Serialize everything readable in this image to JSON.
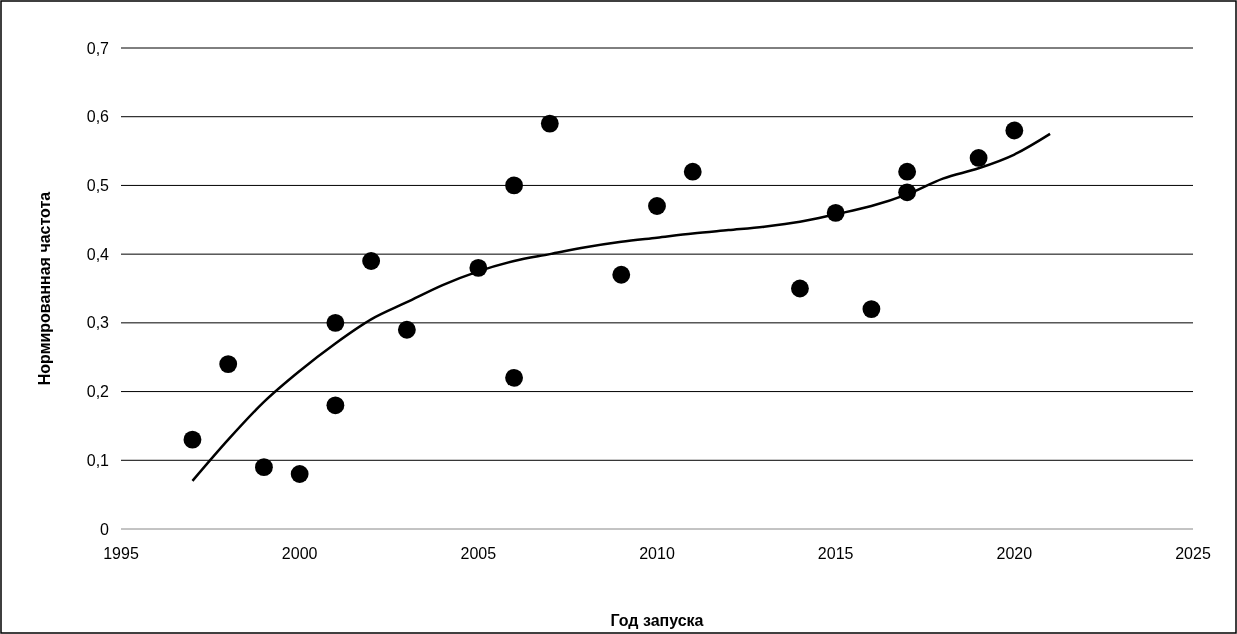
{
  "chart_data": {
    "type": "scatter",
    "xlabel": "Год запуска",
    "ylabel": "Нормированная частота",
    "xlim": [
      1995,
      2025
    ],
    "xticks": [
      1995,
      2000,
      2005,
      2010,
      2015,
      2020,
      2025
    ],
    "ylim": [
      0,
      0.7
    ],
    "yticks": [
      {
        "value": 0,
        "label": "0"
      },
      {
        "value": 0.1,
        "label": "0,1"
      },
      {
        "value": 0.2,
        "label": "0,2"
      },
      {
        "value": 0.3,
        "label": "0,3"
      },
      {
        "value": 0.4,
        "label": "0,4"
      },
      {
        "value": 0.5,
        "label": "0,5"
      },
      {
        "value": 0.6,
        "label": "0,6"
      },
      {
        "value": 0.7,
        "label": "0,7"
      }
    ],
    "grid": "y",
    "series": [
      {
        "color": "#000000",
        "marker": "circle",
        "x": [
          1997,
          1998,
          1999,
          2000,
          2001,
          2001,
          2002,
          2003,
          2005,
          2006,
          2006,
          2007,
          2009,
          2010,
          2011,
          2014,
          2015,
          2016,
          2017,
          2017,
          2019,
          2020
        ],
        "values": [
          0.13,
          0.24,
          0.09,
          0.08,
          0.3,
          0.18,
          0.39,
          0.29,
          0.38,
          0.5,
          0.22,
          0.59,
          0.37,
          0.47,
          0.52,
          0.35,
          0.46,
          0.32,
          0.52,
          0.49,
          0.54,
          0.58
        ]
      },
      {
        "type": "line",
        "color": "#000000",
        "marker": "none",
        "line_style": "solid",
        "x": [
          1997,
          1998,
          1999,
          2000,
          2001,
          2002,
          2003,
          2004,
          2005,
          2006,
          2007,
          2008,
          2009,
          2010,
          2011,
          2012,
          2013,
          2014,
          2015,
          2016,
          2017,
          2018,
          2019,
          2020,
          2021
        ],
        "values": [
          0.07,
          0.13,
          0.185,
          0.23,
          0.27,
          0.305,
          0.33,
          0.355,
          0.375,
          0.39,
          0.4,
          0.41,
          0.418,
          0.424,
          0.43,
          0.435,
          0.44,
          0.447,
          0.458,
          0.47,
          0.487,
          0.51,
          0.525,
          0.545,
          0.575
        ]
      }
    ]
  }
}
